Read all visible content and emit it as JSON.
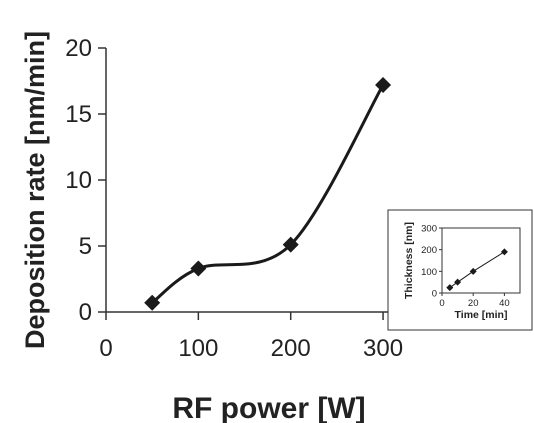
{
  "chart_data": [
    {
      "type": "line",
      "title": "",
      "xlabel": "RF power [W]",
      "ylabel": "Deposition rate [nm/min]",
      "xlim": [
        0,
        340
      ],
      "ylim": [
        0,
        20
      ],
      "xticks": [
        0,
        100,
        200,
        300
      ],
      "yticks": [
        0,
        5,
        10,
        15,
        20
      ],
      "grid": false,
      "smooth": true,
      "series": [
        {
          "marker": "diamond",
          "color": "#1a1a1a",
          "x": [
            50,
            100,
            200,
            300
          ],
          "y": [
            0.7,
            3.3,
            5.1,
            17.2
          ]
        }
      ]
    },
    {
      "type": "line",
      "title": "",
      "xlabel": "Time [min]",
      "ylabel": "Thickness [nm]",
      "xlim": [
        0,
        50
      ],
      "ylim": [
        0,
        300
      ],
      "xticks": [
        0,
        20,
        40
      ],
      "yticks": [
        0,
        100,
        200,
        300
      ],
      "grid": false,
      "legend": "inset-bottom-right",
      "series": [
        {
          "marker": "diamond",
          "color": "#1a1a1a",
          "x": [
            5,
            10,
            20,
            40
          ],
          "y": [
            25,
            50,
            100,
            190
          ]
        }
      ]
    }
  ]
}
